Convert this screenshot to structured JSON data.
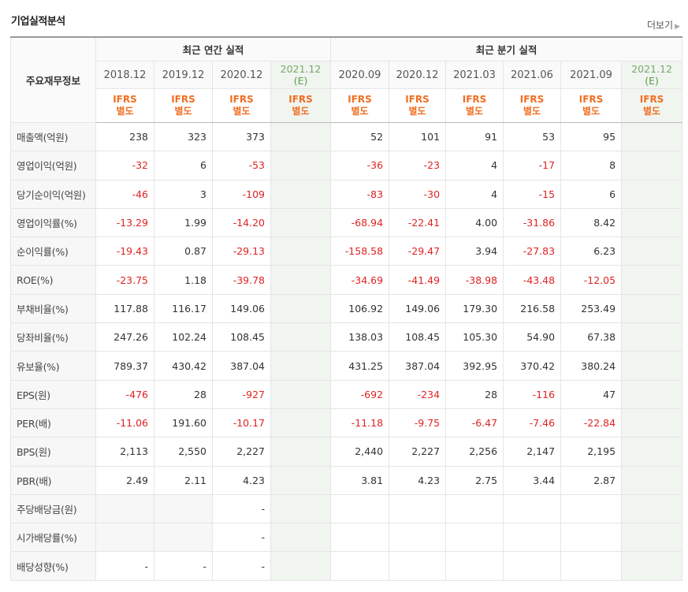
{
  "title": "기업실적분석",
  "more_label": "더보기",
  "header": {
    "row_label": "주요재무정보",
    "annual_group": "최근 연간 실적",
    "quarter_group": "최근 분기 실적",
    "annual_periods": [
      "2018.12",
      "2019.12",
      "2020.12"
    ],
    "annual_est": {
      "period": "2021.12",
      "mark": "(E)"
    },
    "quarter_periods": [
      "2020.09",
      "2020.12",
      "2021.03",
      "2021.06",
      "2021.09"
    ],
    "quarter_est": {
      "period": "2021.12",
      "mark": "(E)"
    },
    "ifrs_top": "IFRS",
    "ifrs_bottom": "별도"
  },
  "rows": [
    {
      "label": "매출액(억원)",
      "annual": [
        "238",
        "323",
        "373"
      ],
      "quarter": [
        "52",
        "101",
        "91",
        "53",
        "95"
      ]
    },
    {
      "label": "영업이익(억원)",
      "annual": [
        "-32",
        "6",
        "-53"
      ],
      "quarter": [
        "-36",
        "-23",
        "4",
        "-17",
        "8"
      ]
    },
    {
      "label": "당기순이익(억원)",
      "annual": [
        "-46",
        "3",
        "-109"
      ],
      "quarter": [
        "-83",
        "-30",
        "4",
        "-15",
        "6"
      ]
    },
    {
      "label": "영업이익률(%)",
      "annual": [
        "-13.29",
        "1.99",
        "-14.20"
      ],
      "quarter": [
        "-68.94",
        "-22.41",
        "4.00",
        "-31.86",
        "8.42"
      ]
    },
    {
      "label": "순이익률(%)",
      "annual": [
        "-19.43",
        "0.87",
        "-29.13"
      ],
      "quarter": [
        "-158.58",
        "-29.47",
        "3.94",
        "-27.83",
        "6.23"
      ]
    },
    {
      "label": "ROE(%)",
      "annual": [
        "-23.75",
        "1.18",
        "-39.78"
      ],
      "quarter": [
        "-34.69",
        "-41.49",
        "-38.98",
        "-43.48",
        "-12.05"
      ]
    },
    {
      "label": "부채비율(%)",
      "annual": [
        "117.88",
        "116.17",
        "149.06"
      ],
      "quarter": [
        "106.92",
        "149.06",
        "179.30",
        "216.58",
        "253.49"
      ]
    },
    {
      "label": "당좌비율(%)",
      "annual": [
        "247.26",
        "102.24",
        "108.45"
      ],
      "quarter": [
        "138.03",
        "108.45",
        "105.30",
        "54.90",
        "67.38"
      ]
    },
    {
      "label": "유보율(%)",
      "annual": [
        "789.37",
        "430.42",
        "387.04"
      ],
      "quarter": [
        "431.25",
        "387.04",
        "392.95",
        "370.42",
        "380.24"
      ]
    },
    {
      "label": "EPS(원)",
      "annual": [
        "-476",
        "28",
        "-927"
      ],
      "quarter": [
        "-692",
        "-234",
        "28",
        "-116",
        "47"
      ]
    },
    {
      "label": "PER(배)",
      "annual": [
        "-11.06",
        "191.60",
        "-10.17"
      ],
      "quarter": [
        "-11.18",
        "-9.75",
        "-6.47",
        "-7.46",
        "-22.84"
      ]
    },
    {
      "label": "BPS(원)",
      "annual": [
        "2,113",
        "2,550",
        "2,227"
      ],
      "quarter": [
        "2,440",
        "2,227",
        "2,256",
        "2,147",
        "2,195"
      ]
    },
    {
      "label": "PBR(배)",
      "annual": [
        "2.49",
        "2.11",
        "4.23"
      ],
      "quarter": [
        "3.81",
        "4.23",
        "2.75",
        "3.44",
        "2.87"
      ]
    },
    {
      "label": "주당배당금(원)",
      "annual": [
        "",
        "",
        "-"
      ],
      "quarter": [
        "",
        "",
        "",
        "",
        ""
      ],
      "dim": [
        true,
        true,
        false
      ]
    },
    {
      "label": "시가배당률(%)",
      "annual": [
        "",
        "",
        "-"
      ],
      "quarter": [
        "",
        "",
        "",
        "",
        ""
      ],
      "dim": [
        true,
        true,
        false
      ]
    },
    {
      "label": "배당성향(%)",
      "annual": [
        "-",
        "-",
        "-"
      ],
      "quarter": [
        "",
        "",
        "",
        "",
        ""
      ]
    }
  ],
  "colors": {
    "negative": "#e02323",
    "ifrs": "#f26e22",
    "estimate": "#5b9b48",
    "estimate_bg": "#f0f5f0"
  }
}
